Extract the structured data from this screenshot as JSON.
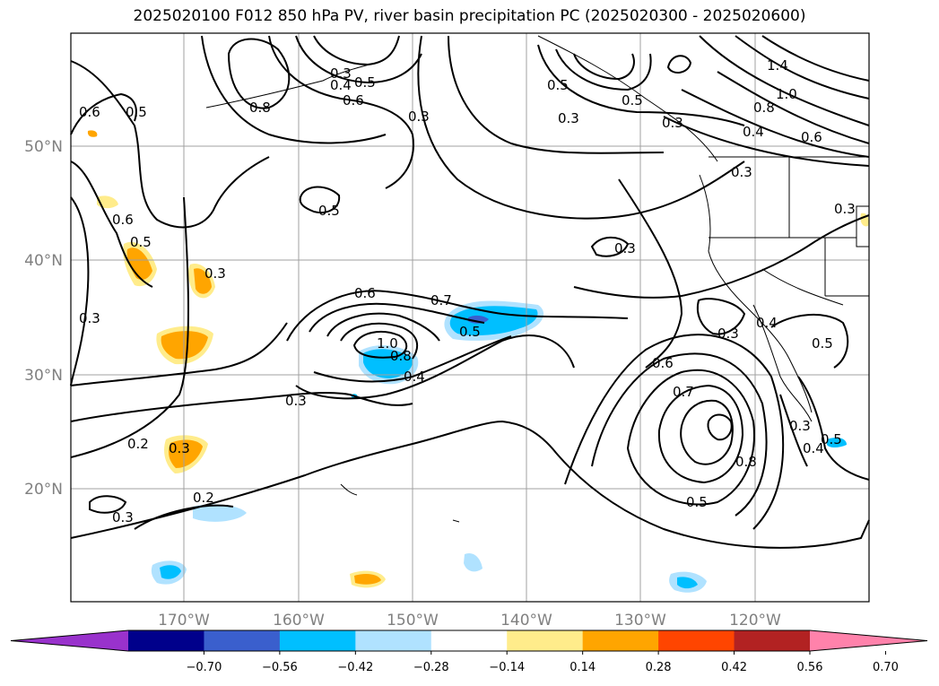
{
  "title": "2025020100 F012 850 hPa PV, river basin precipitation PC (2025020300 - 2025020600)",
  "axes": {
    "lat_labels": [
      "50°N",
      "40°N",
      "30°N",
      "20°N"
    ],
    "lon_labels": [
      "170°W",
      "160°W",
      "150°W",
      "140°W",
      "130°W",
      "120°W"
    ]
  },
  "colorbar": {
    "ticks": [
      "−0.70",
      "−0.56",
      "−0.42",
      "−0.28",
      "−0.14",
      "0.14",
      "0.28",
      "0.42",
      "0.56",
      "0.70"
    ],
    "colors": [
      "#9932cc",
      "#00008b",
      "#3a5fcd",
      "#00bfff",
      "#b0e2ff",
      "#ffffff",
      "#ffec8b",
      "#ffa500",
      "#ff4500",
      "#b22222",
      "#ff82ab"
    ]
  },
  "contour_labels": [
    {
      "text": "0.3",
      "id": "c1"
    },
    {
      "text": "0.5",
      "id": "c2"
    },
    {
      "text": "0.6",
      "id": "c3"
    },
    {
      "text": "0.8",
      "id": "c4"
    },
    {
      "text": "0.4",
      "id": "c5"
    },
    {
      "text": "0.6",
      "id": "c6"
    },
    {
      "text": "0.5",
      "id": "c7"
    },
    {
      "text": "0.3",
      "id": "c8"
    },
    {
      "text": "0.6",
      "id": "c9"
    },
    {
      "text": "0.5",
      "id": "c10"
    },
    {
      "text": "0.3",
      "id": "c11"
    },
    {
      "text": "0.6",
      "id": "c12"
    },
    {
      "text": "0.7",
      "id": "c13"
    },
    {
      "text": "1.0",
      "id": "c14"
    },
    {
      "text": "0.8",
      "id": "c15"
    },
    {
      "text": "0.4",
      "id": "c16"
    },
    {
      "text": "0.5",
      "id": "c17"
    },
    {
      "text": "0.3",
      "id": "c18"
    },
    {
      "text": "0.3",
      "id": "c19"
    },
    {
      "text": "0.2",
      "id": "c20"
    },
    {
      "text": "0.3",
      "id": "c21"
    },
    {
      "text": "0.2",
      "id": "c22"
    },
    {
      "text": "0.3",
      "id": "c23"
    },
    {
      "text": "0.5",
      "id": "c24"
    },
    {
      "text": "0.3",
      "id": "c25"
    },
    {
      "text": "0.6",
      "id": "c26"
    },
    {
      "text": "0.7",
      "id": "c27"
    },
    {
      "text": "0.8",
      "id": "c28"
    },
    {
      "text": "0.5",
      "id": "c29"
    },
    {
      "text": "0.3",
      "id": "c30"
    },
    {
      "text": "0.4",
      "id": "c31"
    },
    {
      "text": "0.5",
      "id": "c32"
    },
    {
      "text": "0.3",
      "id": "c33"
    },
    {
      "text": "0.4",
      "id": "c34"
    },
    {
      "text": "0.5",
      "id": "c35"
    },
    {
      "text": "0.3",
      "id": "c36"
    },
    {
      "text": "1.4",
      "id": "c37"
    },
    {
      "text": "1.0",
      "id": "c38"
    },
    {
      "text": "0.8",
      "id": "c39"
    },
    {
      "text": "0.6",
      "id": "c40"
    },
    {
      "text": "0.4",
      "id": "c41"
    },
    {
      "text": "0.3",
      "id": "c42"
    },
    {
      "text": "0.5",
      "id": "c43"
    },
    {
      "text": "0.3",
      "id": "c44"
    },
    {
      "text": "0.5",
      "id": "c45"
    },
    {
      "text": "0.3",
      "id": "c46"
    }
  ]
}
